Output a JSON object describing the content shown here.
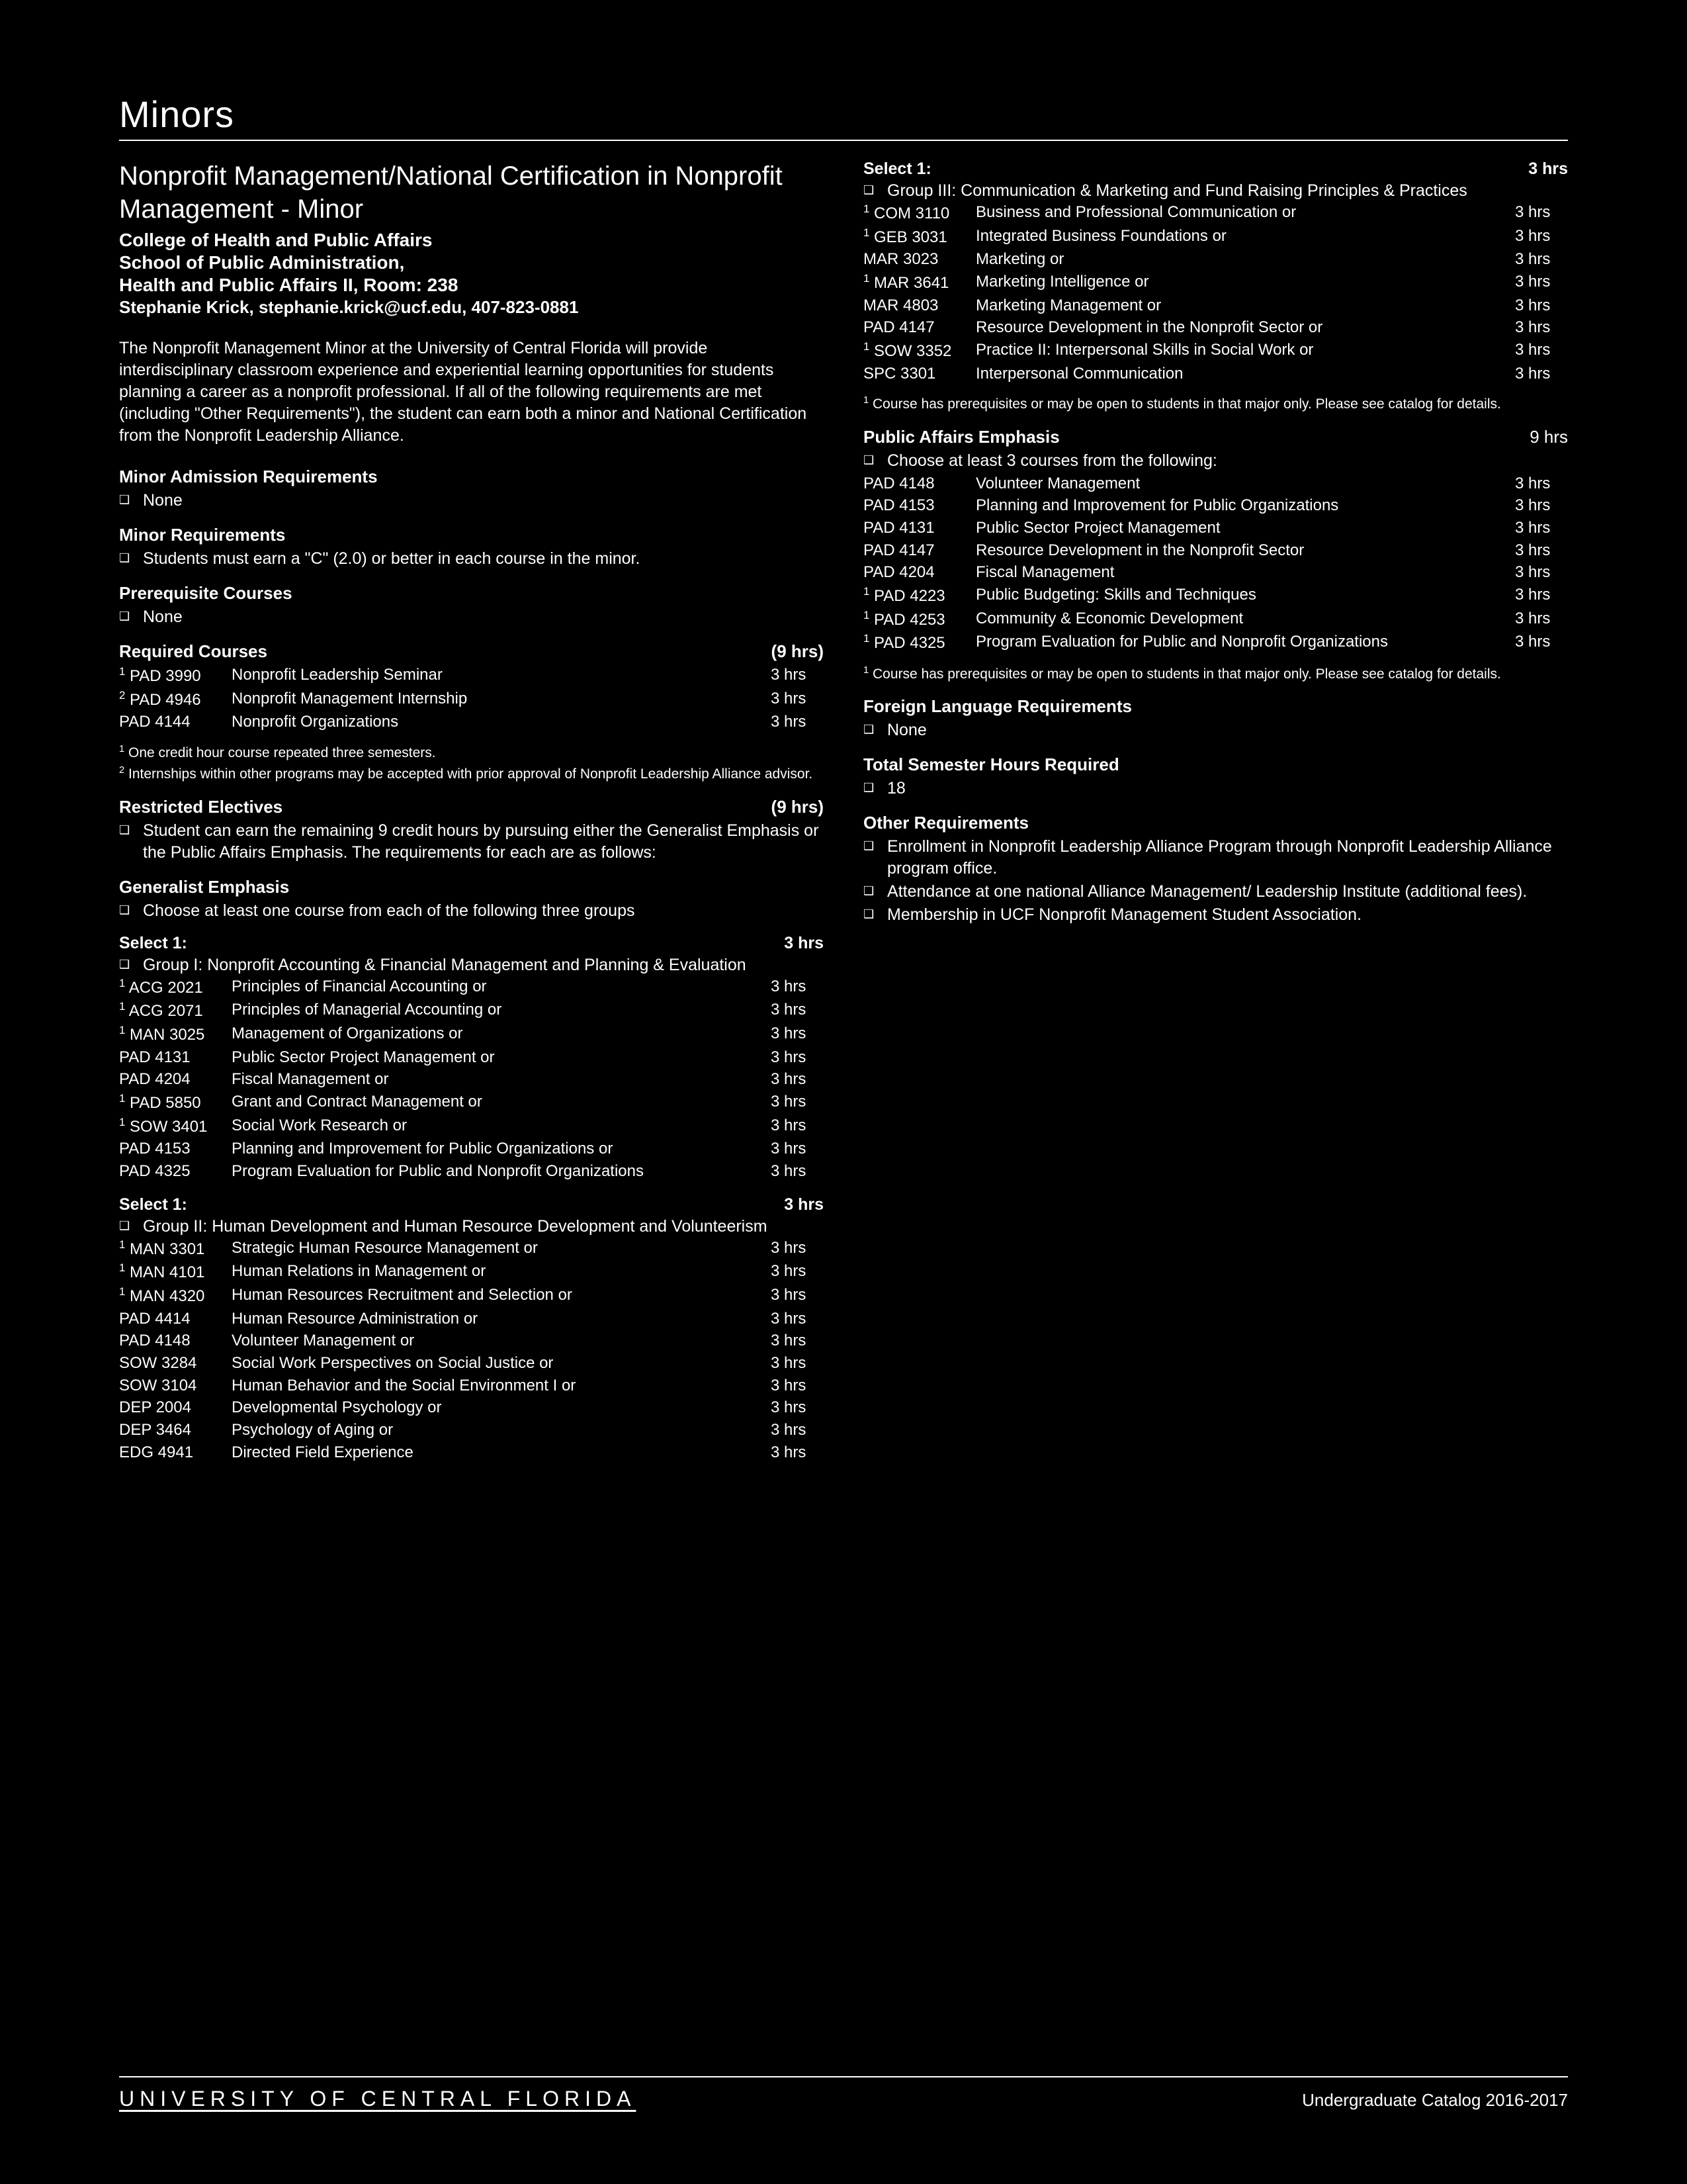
{
  "heading": "Minors",
  "program_title": "Nonprofit Management/National Certification in Nonprofit Management - Minor",
  "college": "College of Health and Public Affairs",
  "school": "School of Public Administration,",
  "location": "Health and Public Affairs II, Room: 238",
  "contact": "Stephanie Krick, stephanie.krick@ucf.edu, 407-823-0881",
  "intro": "The Nonprofit Management Minor at the University of Central Florida will provide interdisciplinary classroom experience and experiential learning opportunities for students planning a career as a nonprofit professional. If all of the following requirements are met (including \"Other Requirements\"), the student can earn both a minor and National Certification from the Nonprofit Leadership Alliance.",
  "sec_admission": "Minor Admission Requirements",
  "none": "None",
  "sec_minorreq": "Minor Requirements",
  "minorreq_txt": "Students must earn a \"C\" (2.0) or better in each course in the minor.",
  "sec_prereq": "Prerequisite Courses",
  "sec_required": "Required Courses",
  "sec_required_hrs": "(9 hrs)",
  "required_courses": [
    {
      "sup": "1",
      "code": "PAD 3990",
      "title": "Nonprofit Leadership Seminar",
      "hrs": "3 hrs"
    },
    {
      "sup": "2",
      "code": "PAD 4946",
      "title": "Nonprofit Management Internship",
      "hrs": "3 hrs"
    },
    {
      "sup": "",
      "code": "PAD 4144",
      "title": "Nonprofit Organizations",
      "hrs": "3 hrs"
    }
  ],
  "fn1": "One credit hour course repeated three semesters.",
  "fn2": "Internships within other programs may be accepted with prior approval of Nonprofit Leadership Alliance advisor.",
  "sec_restricted": "Restricted Electives",
  "sec_restricted_hrs": "(9 hrs)",
  "restricted_txt": "Student can earn the remaining 9 credit hours by pursuing either the Generalist Emphasis or the Public Affairs Emphasis. The requirements for each are as follows:",
  "gen_emph": "Generalist Emphasis",
  "gen_emph_txt": "Choose at least one course from each of the following three groups",
  "select1": "Select 1:",
  "hrs3": "3 hrs",
  "group1_head": "Group I: Nonprofit Accounting & Financial Management and Planning & Evaluation",
  "group1_courses": [
    {
      "sup": "1",
      "code": "ACG 2021",
      "title": "Principles of Financial Accounting or",
      "hrs": "3 hrs"
    },
    {
      "sup": "1",
      "code": "ACG 2071",
      "title": "Principles of Managerial Accounting or",
      "hrs": "3 hrs"
    },
    {
      "sup": "1",
      "code": "MAN 3025",
      "title": "Management of Organizations or",
      "hrs": "3 hrs"
    },
    {
      "sup": "",
      "code": "PAD 4131",
      "title": "Public Sector Project Management or",
      "hrs": "3 hrs"
    },
    {
      "sup": "",
      "code": "PAD 4204",
      "title": "Fiscal Management or",
      "hrs": "3 hrs"
    },
    {
      "sup": "1",
      "code": "PAD 5850",
      "title": "Grant and Contract Management or",
      "hrs": "3 hrs"
    },
    {
      "sup": "1",
      "code": "SOW 3401",
      "title": "Social Work Research or",
      "hrs": "3 hrs"
    },
    {
      "sup": "",
      "code": "PAD 4153",
      "title": "Planning and Improvement for Public Organizations or",
      "hrs": "3 hrs"
    },
    {
      "sup": "",
      "code": "PAD 4325",
      "title": "Program Evaluation for Public and Nonprofit Organizations",
      "hrs": "3 hrs"
    }
  ],
  "group2_head": "Group II: Human Development and Human Resource Development and Volunteerism",
  "group2_courses": [
    {
      "sup": "1",
      "code": "MAN 3301",
      "title": "Strategic Human Resource Management or",
      "hrs": "3 hrs"
    },
    {
      "sup": "1",
      "code": "MAN 4101",
      "title": "Human Relations in Management or",
      "hrs": "3 hrs"
    },
    {
      "sup": "1",
      "code": "MAN 4320",
      "title": "Human Resources Recruitment and Selection or",
      "hrs": "3 hrs"
    },
    {
      "sup": "",
      "code": "PAD 4414",
      "title": "Human Resource Administration or",
      "hrs": "3 hrs"
    },
    {
      "sup": "",
      "code": "PAD 4148",
      "title": "Volunteer Management or",
      "hrs": "3 hrs"
    },
    {
      "sup": "",
      "code": "SOW 3284",
      "title": "Social Work Perspectives on Social Justice or",
      "hrs": "3 hrs"
    },
    {
      "sup": "",
      "code": "SOW 3104",
      "title": "Human Behavior and the Social Environment I or",
      "hrs": "3 hrs"
    },
    {
      "sup": "",
      "code": "DEP 2004",
      "title": "Developmental Psychology or",
      "hrs": "3 hrs"
    },
    {
      "sup": "",
      "code": "DEP 3464",
      "title": "Psychology of Aging or",
      "hrs": "3 hrs"
    },
    {
      "sup": "",
      "code": "EDG 4941",
      "title": "Directed Field Experience",
      "hrs": "3 hrs"
    }
  ],
  "group3_head": "Group III: Communication & Marketing and Fund Raising Principles & Practices",
  "group3_courses": [
    {
      "sup": "1",
      "code": "COM 3110",
      "title": "Business and Professional Communication or",
      "hrs": "3 hrs"
    },
    {
      "sup": "1",
      "code": "GEB 3031",
      "title": "Integrated Business Foundations or",
      "hrs": "3 hrs"
    },
    {
      "sup": "",
      "code": "MAR 3023",
      "title": "Marketing or",
      "hrs": "3 hrs"
    },
    {
      "sup": "1",
      "code": "MAR 3641",
      "title": "Marketing Intelligence or",
      "hrs": "3 hrs"
    },
    {
      "sup": "",
      "code": "MAR 4803",
      "title": "Marketing Management or",
      "hrs": "3 hrs"
    },
    {
      "sup": "",
      "code": "PAD 4147",
      "title": "Resource Development in the Nonprofit Sector or",
      "hrs": "3 hrs"
    },
    {
      "sup": "1",
      "code": "SOW 3352",
      "title": "Practice II: Interpersonal Skills in Social Work or",
      "hrs": "3 hrs"
    },
    {
      "sup": "",
      "code": "SPC 3301",
      "title": "Interpersonal Communication",
      "hrs": "3 hrs"
    }
  ],
  "fn_prereq": "Course has prerequisites or may be open to students in that major only. Please see catalog for details.",
  "pa_emph": "Public Affairs Emphasis",
  "pa_emph_hrs": "9 hrs",
  "pa_emph_txt": "Choose at least 3 courses from the following:",
  "pa_courses": [
    {
      "sup": "",
      "code": "PAD 4148",
      "title": "Volunteer Management",
      "hrs": "3 hrs"
    },
    {
      "sup": "",
      "code": "PAD 4153",
      "title": "Planning and Improvement for Public Organizations",
      "hrs": "3 hrs"
    },
    {
      "sup": "",
      "code": "PAD 4131",
      "title": "Public Sector Project Management",
      "hrs": "3 hrs"
    },
    {
      "sup": "",
      "code": "PAD 4147",
      "title": "Resource Development in the Nonprofit Sector",
      "hrs": "3 hrs"
    },
    {
      "sup": "",
      "code": "PAD 4204",
      "title": "Fiscal Management",
      "hrs": "3 hrs"
    },
    {
      "sup": "1",
      "code": "PAD 4223",
      "title": "Public Budgeting: Skills and Techniques",
      "hrs": "3 hrs"
    },
    {
      "sup": "1",
      "code": "PAD 4253",
      "title": "Community & Economic Development",
      "hrs": "3 hrs"
    },
    {
      "sup": "1",
      "code": "PAD 4325",
      "title": "Program Evaluation for Public and Nonprofit Organizations",
      "hrs": "3 hrs"
    }
  ],
  "sec_foreign": "Foreign Language Requirements",
  "sec_total": "Total Semester Hours Required",
  "total_hrs": "18",
  "sec_other": "Other Requirements",
  "other1": "Enrollment in Nonprofit Leadership Alliance Program through Nonprofit Leadership Alliance program office.",
  "other2": "Attendance at one national Alliance Management/ Leadership Institute (additional fees).",
  "other3": "Membership in UCF Nonprofit Management Student Association.",
  "footer_left": "UNIVERSITY OF CENTRAL FLORIDA",
  "footer_right": "Undergraduate Catalog 2016-2017"
}
